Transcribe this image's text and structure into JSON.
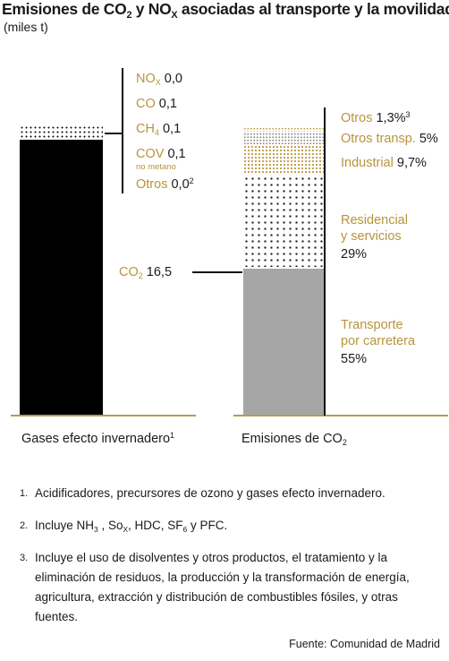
{
  "title_pre": "Emisiones de CO",
  "title_sub1": "2",
  "title_mid": " y NO",
  "title_sub2": "X",
  "title_post": " asociadas al transporte y la movilidad",
  "subtitle": "(miles t)",
  "colors": {
    "gold": "#b8953d",
    "black": "#000000",
    "gray": "#a6a6a6",
    "baseline": "#b69b4c"
  },
  "chart_data": [
    {
      "type": "bar",
      "xlabel_pre": "Gases efecto invernadero",
      "xlabel_sup": "1",
      "units": "miles t",
      "segments": [
        {
          "pre": "NO",
          "sub": "X",
          "value": 0.0,
          "value_text": "0,0"
        },
        {
          "pre": "CO",
          "sub": "",
          "value": 0.1,
          "value_text": "0,1"
        },
        {
          "pre": "CH",
          "sub": "4",
          "value": 0.1,
          "value_text": "0,1"
        },
        {
          "pre": "COV",
          "sub": "",
          "value": 0.1,
          "value_text": "0,1",
          "note": "no metano"
        },
        {
          "pre": "Otros",
          "sub": "",
          "value": 0.0,
          "value_text": "0,0",
          "sup": "2"
        },
        {
          "pre": "CO",
          "sub": "2",
          "value": 16.5,
          "value_text": "16,5"
        }
      ]
    },
    {
      "type": "bar",
      "xlabel_pre": "Emisiones de CO",
      "xlabel_sub": "2",
      "units": "%",
      "segments": [
        {
          "label": "Otros",
          "value": 1.3,
          "value_text": "1,3%",
          "sup": "3"
        },
        {
          "label": "Otros transp.",
          "value": 5,
          "value_text": "5%"
        },
        {
          "label": "Industrial",
          "value": 9.7,
          "value_text": "9,7%"
        },
        {
          "label_line1": "Residencial",
          "label_line2": "y servicios",
          "value": 29,
          "value_text": "29%"
        },
        {
          "label_line1": "Transporte",
          "label_line2": "por carretera",
          "value": 55,
          "value_text": "55%"
        }
      ]
    }
  ],
  "notes": [
    {
      "num": "1.",
      "text": "Acidificadores, precursores de ozono y gases efecto invernadero."
    },
    {
      "num": "2.",
      "text_a": "Incluye NH",
      "sub_a": "3",
      "text_b": " , So",
      "sub_b": "X",
      "text_c": ", HDC, SF",
      "sub_c": "6",
      "text_d": " y PFC."
    },
    {
      "num": "3.",
      "text": "Incluye el uso de disolventes y otros productos, el tratamiento y la eliminación de residuos, la producción y la transformación de energía, agricultura, extracción y distribución de combustibles fósiles, y otras fuentes."
    }
  ],
  "source": "Fuente: Comunidad de Madrid"
}
